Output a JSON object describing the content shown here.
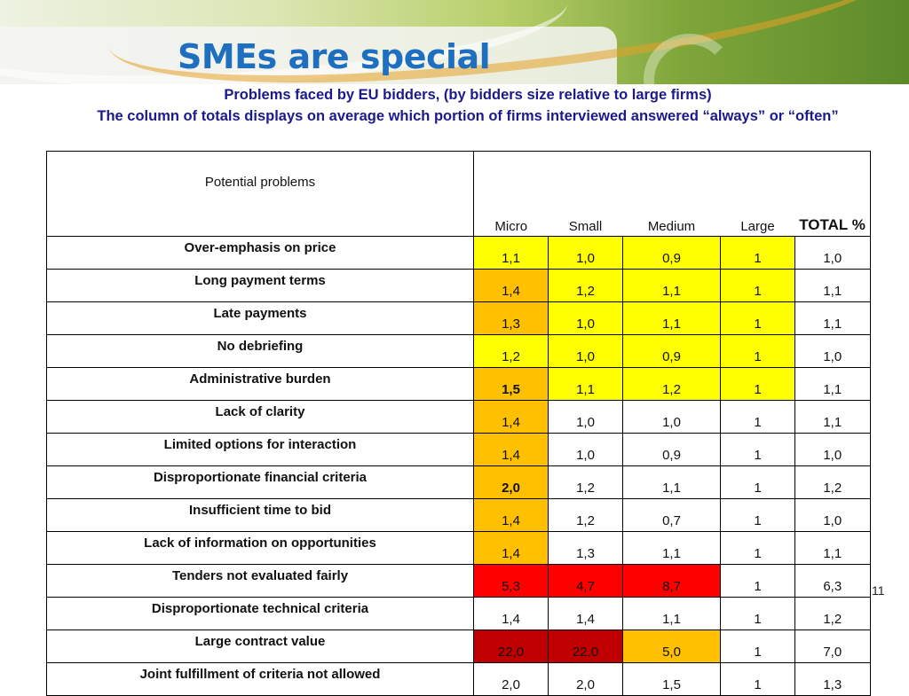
{
  "slide": {
    "title": "SMEs are special",
    "subtitle_1": "Problems faced by EU bidders, (by bidders size relative to large firms)",
    "subtitle_2": "The column of totals displays on average which portion of firms interviewed answered “always” or “often”",
    "page_number": "11"
  },
  "colors": {
    "yellow": "#ffff00",
    "orange": "#ffc000",
    "red": "#ff0000",
    "dark_red": "#c00000",
    "white": "#ffffff"
  },
  "table": {
    "header_label": "Potential problems",
    "columns": [
      "Micro",
      "Small",
      "Medium",
      "Large",
      "TOTAL %"
    ],
    "rows": [
      {
        "problem": "Over-emphasis on price",
        "values": [
          "1,1",
          "1,0",
          "0,9",
          "1",
          "1,0"
        ],
        "fills": [
          "yellow",
          "yellow",
          "yellow",
          "yellow",
          "white"
        ],
        "bold": [
          false,
          false,
          false,
          false,
          false
        ]
      },
      {
        "problem": "Long payment terms",
        "values": [
          "1,4",
          "1,2",
          "1,1",
          "1",
          "1,1"
        ],
        "fills": [
          "orange",
          "yellow",
          "yellow",
          "yellow",
          "white"
        ],
        "bold": [
          false,
          false,
          false,
          false,
          false
        ]
      },
      {
        "problem": "Late payments",
        "values": [
          "1,3",
          "1,0",
          "1,1",
          "1",
          "1,1"
        ],
        "fills": [
          "orange",
          "yellow",
          "yellow",
          "yellow",
          "white"
        ],
        "bold": [
          false,
          false,
          false,
          false,
          false
        ]
      },
      {
        "problem": "No debriefing",
        "values": [
          "1,2",
          "1,0",
          "0,9",
          "1",
          "1,0"
        ],
        "fills": [
          "yellow",
          "yellow",
          "yellow",
          "yellow",
          "white"
        ],
        "bold": [
          false,
          false,
          false,
          false,
          false
        ]
      },
      {
        "problem": "Administrative burden",
        "values": [
          "1,5",
          "1,1",
          "1,2",
          "1",
          "1,1"
        ],
        "fills": [
          "orange",
          "yellow",
          "yellow",
          "yellow",
          "white"
        ],
        "bold": [
          true,
          false,
          false,
          false,
          false
        ]
      },
      {
        "problem": "Lack of clarity",
        "values": [
          "1,4",
          "1,0",
          "1,0",
          "1",
          "1,1"
        ],
        "fills": [
          "orange",
          "white",
          "white",
          "white",
          "white"
        ],
        "bold": [
          false,
          false,
          false,
          false,
          false
        ]
      },
      {
        "problem": "Limited options for interaction",
        "values": [
          "1,4",
          "1,0",
          "0,9",
          "1",
          "1,0"
        ],
        "fills": [
          "orange",
          "white",
          "white",
          "white",
          "white"
        ],
        "bold": [
          false,
          false,
          false,
          false,
          false
        ]
      },
      {
        "problem": "Disproportionate financial criteria",
        "values": [
          "2,0",
          "1,2",
          "1,1",
          "1",
          "1,2"
        ],
        "fills": [
          "orange",
          "white",
          "white",
          "white",
          "white"
        ],
        "bold": [
          true,
          false,
          false,
          false,
          false
        ]
      },
      {
        "problem": "Insufficient time to bid",
        "values": [
          "1,4",
          "1,2",
          "0,7",
          "1",
          "1,0"
        ],
        "fills": [
          "orange",
          "white",
          "white",
          "white",
          "white"
        ],
        "bold": [
          false,
          false,
          false,
          false,
          false
        ]
      },
      {
        "problem": "Lack of information on opportunities",
        "values": [
          "1,4",
          "1,3",
          "1,1",
          "1",
          "1,1"
        ],
        "fills": [
          "orange",
          "white",
          "white",
          "white",
          "white"
        ],
        "bold": [
          false,
          false,
          false,
          false,
          false
        ]
      },
      {
        "problem": "Tenders not evaluated fairly",
        "values": [
          "5,3",
          "4,7",
          "8,7",
          "1",
          "6,3"
        ],
        "fills": [
          "red",
          "red",
          "red",
          "white",
          "white"
        ],
        "bold": [
          false,
          false,
          false,
          false,
          false
        ]
      },
      {
        "problem": "Disproportionate technical criteria",
        "values": [
          "1,4",
          "1,4",
          "1,1",
          "1",
          "1,2"
        ],
        "fills": [
          "white",
          "white",
          "white",
          "white",
          "white"
        ],
        "bold": [
          false,
          false,
          false,
          false,
          false
        ]
      },
      {
        "problem": "Large contract value",
        "values": [
          "22,0",
          "22,0",
          "5,0",
          "1",
          "7,0"
        ],
        "fills": [
          "dark_red",
          "dark_red",
          "orange",
          "white",
          "white"
        ],
        "bold": [
          false,
          false,
          false,
          false,
          false
        ]
      },
      {
        "problem": "Joint fulfillment of criteria not allowed",
        "values": [
          "2,0",
          "2,0",
          "1,5",
          "1",
          "1,3"
        ],
        "fills": [
          "white",
          "white",
          "white",
          "white",
          "white"
        ],
        "bold": [
          false,
          false,
          false,
          false,
          false
        ]
      }
    ]
  }
}
